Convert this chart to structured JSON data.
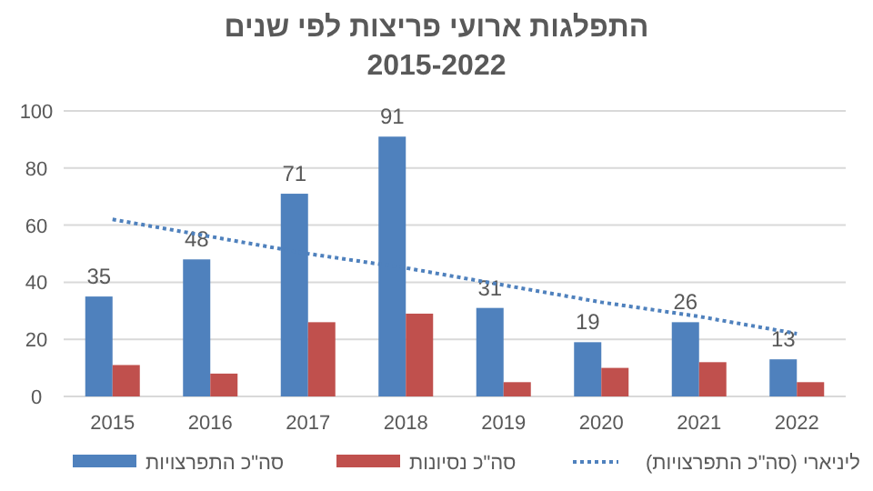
{
  "chart_data": {
    "type": "bar",
    "title": "התפלגות ארועי פריצות לפי שנים\n2015-2022",
    "categories": [
      "2015",
      "2016",
      "2017",
      "2018",
      "2019",
      "2020",
      "2021",
      "2022"
    ],
    "series": [
      {
        "name": "סה\"כ התפרצויות",
        "color": "#4f81bd",
        "values": [
          35,
          48,
          71,
          91,
          31,
          19,
          26,
          13
        ],
        "value_labels": [
          "35",
          "48",
          "71",
          "91",
          "31",
          "19",
          "26",
          "13"
        ]
      },
      {
        "name": "סה\"כ נסיונות",
        "color": "#c0504d",
        "values": [
          11,
          8,
          26,
          29,
          5,
          10,
          12,
          5
        ]
      },
      {
        "name": "ליניארי (סה\"כ התפרצויות)",
        "type": "line",
        "color": "#4f81bd",
        "line_style": "dotted",
        "values": [
          62,
          56,
          50,
          45,
          39,
          33,
          28,
          22
        ]
      }
    ],
    "ylim": [
      0,
      100
    ],
    "yticks": [
      0,
      20,
      40,
      60,
      80,
      100
    ],
    "grid": "y",
    "legend": "bottom"
  }
}
